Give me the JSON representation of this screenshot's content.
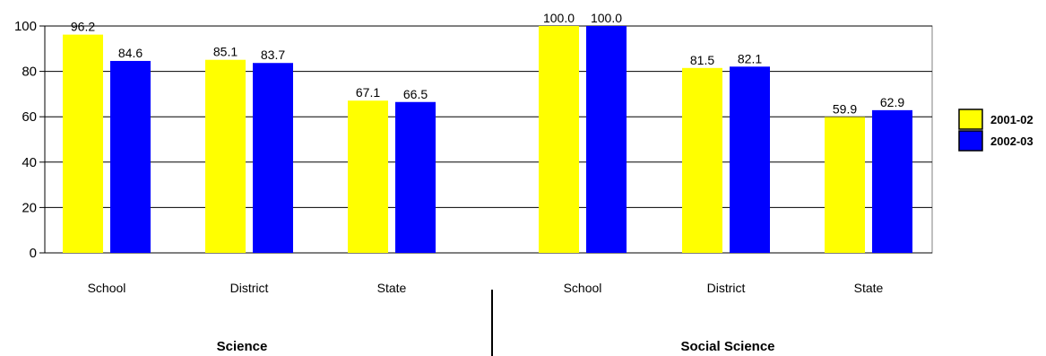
{
  "chart_data": {
    "type": "bar",
    "groups": [
      {
        "label": "Science",
        "categories": [
          "School",
          "District",
          "State"
        ]
      },
      {
        "label": "Social Science",
        "categories": [
          "School",
          "District",
          "State"
        ]
      }
    ],
    "categories": [
      "School",
      "District",
      "State",
      "School",
      "District",
      "State"
    ],
    "series": [
      {
        "name": "2001-02",
        "color": "#ffff00",
        "values": [
          96.2,
          85.1,
          67.1,
          100.0,
          81.5,
          59.9
        ]
      },
      {
        "name": "2002-03",
        "color": "#0000ff",
        "values": [
          84.6,
          83.7,
          66.5,
          100.0,
          82.1,
          62.9
        ]
      }
    ],
    "value_labels": [
      [
        "96.2",
        "85.1",
        "67.1",
        "100.0",
        "81.5",
        "59.9"
      ],
      [
        "84.6",
        "83.7",
        "66.5",
        "100.0",
        "82.1",
        "62.9"
      ]
    ],
    "yticks": [
      "0",
      "20",
      "40",
      "60",
      "80",
      "100"
    ],
    "ylim": [
      0,
      100
    ],
    "grid": true,
    "legend": "right"
  }
}
